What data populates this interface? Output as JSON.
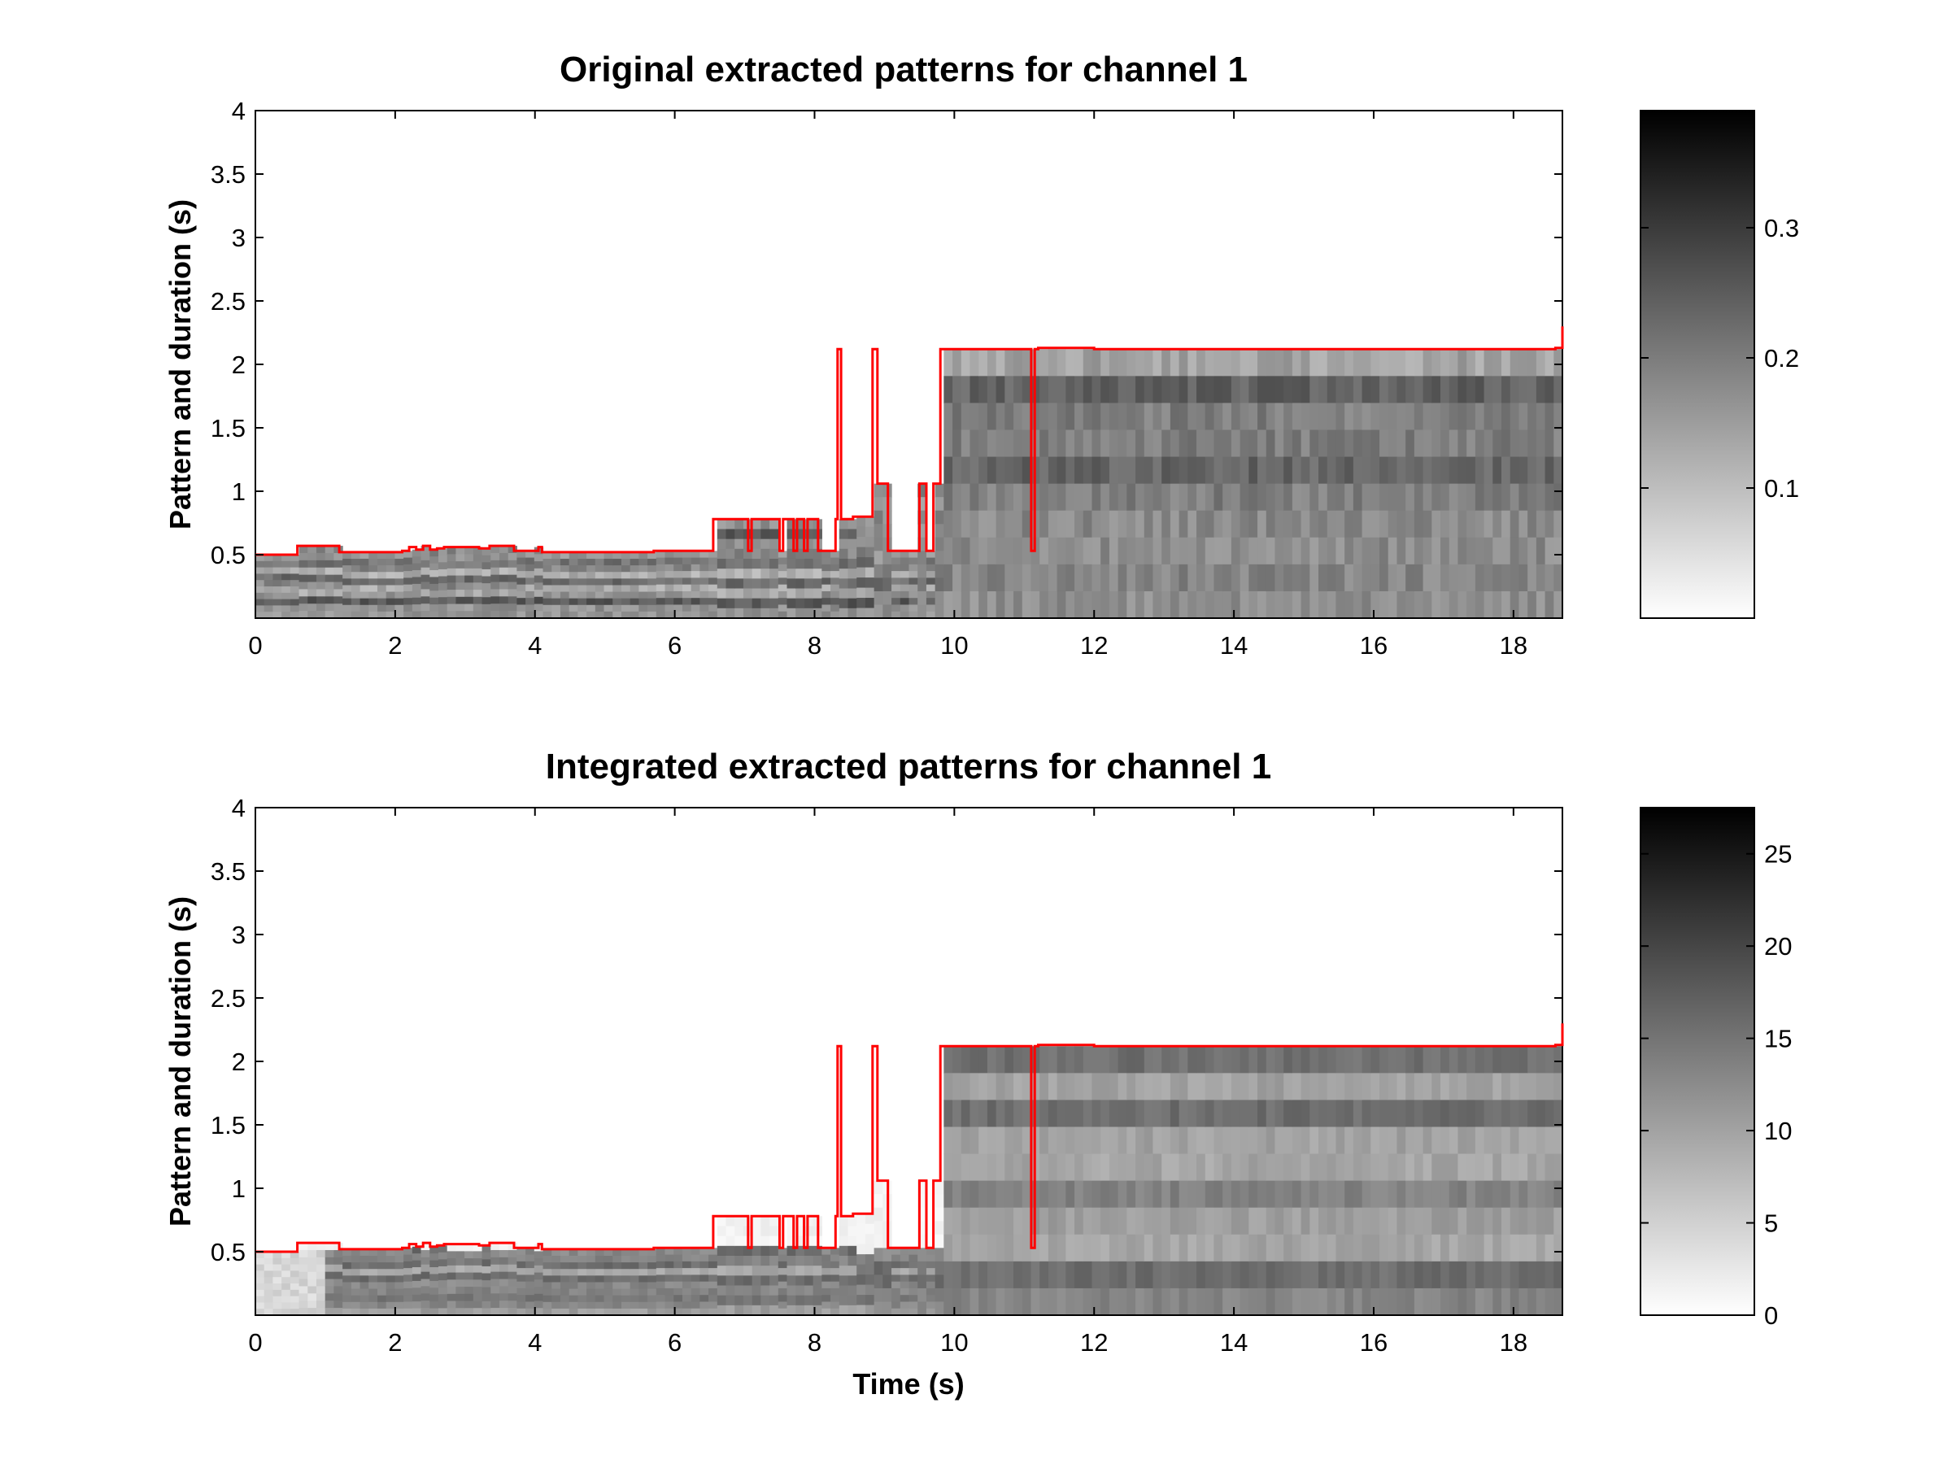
{
  "chart_data": [
    {
      "type": "heatmap",
      "title": "Original extracted patterns for channel 1",
      "xlabel": "",
      "ylabel": "Pattern and duration (s)",
      "xlim": [
        0,
        18.7
      ],
      "ylim": [
        0,
        4
      ],
      "xticks": [
        "0",
        "2",
        "4",
        "6",
        "8",
        "10",
        "12",
        "14",
        "16",
        "18"
      ],
      "yticks": [
        "0.5",
        "1",
        "1.5",
        "2",
        "2.5",
        "3",
        "3.5",
        "4"
      ],
      "colormap": "gray (white = low, black = high)",
      "colorbar": {
        "range": [
          0,
          0.39
        ],
        "ticks": [
          "0.1",
          "0.2",
          "0.3"
        ]
      },
      "overlay_line_color": "#ff0000",
      "overlay_line": {
        "t": [
          0,
          0.55,
          0.6,
          1.15,
          1.2,
          2.1,
          2.2,
          2.3,
          2.4,
          2.5,
          2.6,
          2.7,
          3.2,
          3.35,
          3.6,
          3.7,
          4.0,
          4.05,
          4.1,
          5.7,
          6.5,
          6.55,
          6.65,
          7.05,
          7.1,
          7.3,
          7.5,
          7.55,
          7.7,
          7.75,
          7.85,
          7.9,
          8.05,
          8.3,
          8.33,
          8.38,
          8.45,
          8.55,
          8.8,
          8.83,
          8.9,
          9.0,
          9.05,
          9.4,
          9.5,
          9.6,
          9.7,
          9.8,
          11.05,
          11.1,
          11.15,
          11.2,
          12.0,
          12.2,
          18.6,
          18.7
        ],
        "y": [
          0.5,
          0.5,
          0.57,
          0.57,
          0.52,
          0.53,
          0.56,
          0.54,
          0.57,
          0.54,
          0.55,
          0.56,
          0.55,
          0.57,
          0.57,
          0.53,
          0.53,
          0.56,
          0.52,
          0.53,
          0.53,
          0.78,
          0.78,
          0.53,
          0.78,
          0.78,
          0.53,
          0.78,
          0.53,
          0.78,
          0.53,
          0.78,
          0.53,
          0.78,
          2.12,
          0.78,
          0.78,
          0.8,
          0.8,
          2.12,
          1.06,
          1.06,
          0.53,
          0.53,
          1.06,
          0.53,
          1.06,
          2.12,
          2.12,
          0.53,
          2.12,
          2.13,
          2.12,
          2.12,
          2.13,
          2.3
        ]
      }
    },
    {
      "type": "heatmap",
      "title": "Integrated extracted patterns for channel 1",
      "xlabel": "Time (s)",
      "ylabel": "Pattern and duration (s)",
      "xlim": [
        0,
        18.7
      ],
      "ylim": [
        0,
        4
      ],
      "xticks": [
        "0",
        "2",
        "4",
        "6",
        "8",
        "10",
        "12",
        "14",
        "16",
        "18"
      ],
      "yticks": [
        "0.5",
        "1",
        "1.5",
        "2",
        "2.5",
        "3",
        "3.5",
        "4"
      ],
      "colormap": "gray (white = low, black = high)",
      "colorbar": {
        "range": [
          0,
          27.5
        ],
        "ticks": [
          "0",
          "5",
          "10",
          "15",
          "20",
          "25"
        ]
      },
      "overlay_line_color": "#ff0000",
      "overlay_line": {
        "t": [
          0,
          0.55,
          0.6,
          1.15,
          1.2,
          2.1,
          2.2,
          2.3,
          2.4,
          2.5,
          2.6,
          2.7,
          3.2,
          3.35,
          3.6,
          3.7,
          4.0,
          4.05,
          4.1,
          5.7,
          6.5,
          6.55,
          6.65,
          7.05,
          7.1,
          7.3,
          7.5,
          7.55,
          7.7,
          7.75,
          7.85,
          7.9,
          8.05,
          8.3,
          8.33,
          8.38,
          8.45,
          8.55,
          8.8,
          8.83,
          8.9,
          9.0,
          9.05,
          9.4,
          9.5,
          9.6,
          9.7,
          9.8,
          11.05,
          11.1,
          11.15,
          11.2,
          12.0,
          12.2,
          18.6,
          18.7
        ],
        "y": [
          0.5,
          0.5,
          0.57,
          0.57,
          0.52,
          0.53,
          0.56,
          0.54,
          0.57,
          0.54,
          0.55,
          0.56,
          0.55,
          0.57,
          0.57,
          0.53,
          0.53,
          0.56,
          0.52,
          0.53,
          0.53,
          0.78,
          0.78,
          0.53,
          0.78,
          0.78,
          0.53,
          0.78,
          0.53,
          0.78,
          0.53,
          0.78,
          0.53,
          0.78,
          2.12,
          0.78,
          0.78,
          0.8,
          0.8,
          2.12,
          1.06,
          1.06,
          0.53,
          0.53,
          1.06,
          0.53,
          1.06,
          2.12,
          2.12,
          0.53,
          2.12,
          2.13,
          2.12,
          2.12,
          2.13,
          2.3
        ]
      }
    }
  ]
}
